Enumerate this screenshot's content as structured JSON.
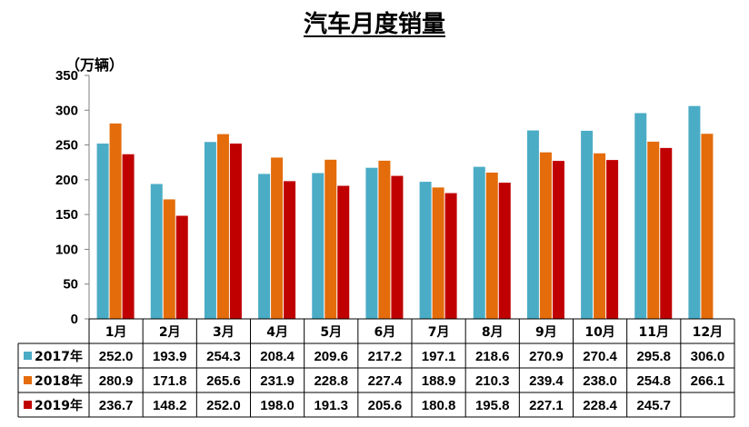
{
  "chart_data": {
    "type": "bar",
    "title": "汽车月度销量",
    "ylabel": "（万辆）",
    "ylim": [
      0,
      350
    ],
    "yticks": [
      "0",
      "50",
      "100",
      "150",
      "200",
      "250",
      "300",
      "350"
    ],
    "categories": [
      "1月",
      "2月",
      "3月",
      "4月",
      "5月",
      "6月",
      "7月",
      "8月",
      "9月",
      "10月",
      "11月",
      "12月"
    ],
    "series": [
      {
        "name": "2017年",
        "color": "#4BACC6",
        "values": [
          252.0,
          193.9,
          254.3,
          208.4,
          209.6,
          217.2,
          197.1,
          218.6,
          270.9,
          270.4,
          295.8,
          306.0
        ],
        "labels": [
          "252.0",
          "193.9",
          "254.3",
          "208.4",
          "209.6",
          "217.2",
          "197.1",
          "218.6",
          "270.9",
          "270.4",
          "295.8",
          "306.0"
        ]
      },
      {
        "name": "2018年",
        "color": "#E46C0A",
        "values": [
          280.9,
          171.8,
          265.6,
          231.9,
          228.8,
          227.4,
          188.9,
          210.3,
          239.4,
          238.0,
          254.8,
          266.1
        ],
        "labels": [
          "280.9",
          "171.8",
          "265.6",
          "231.9",
          "228.8",
          "227.4",
          "188.9",
          "210.3",
          "239.4",
          "238.0",
          "254.8",
          "266.1"
        ]
      },
      {
        "name": "2019年",
        "color": "#C00000",
        "values": [
          236.7,
          148.2,
          252.0,
          198.0,
          191.3,
          205.6,
          180.8,
          195.8,
          227.1,
          228.4,
          245.7,
          null
        ],
        "labels": [
          "236.7",
          "148.2",
          "252.0",
          "198.0",
          "191.3",
          "205.6",
          "180.8",
          "195.8",
          "227.1",
          "228.4",
          "245.7",
          ""
        ]
      }
    ],
    "legend": "data-table",
    "grid": false
  }
}
